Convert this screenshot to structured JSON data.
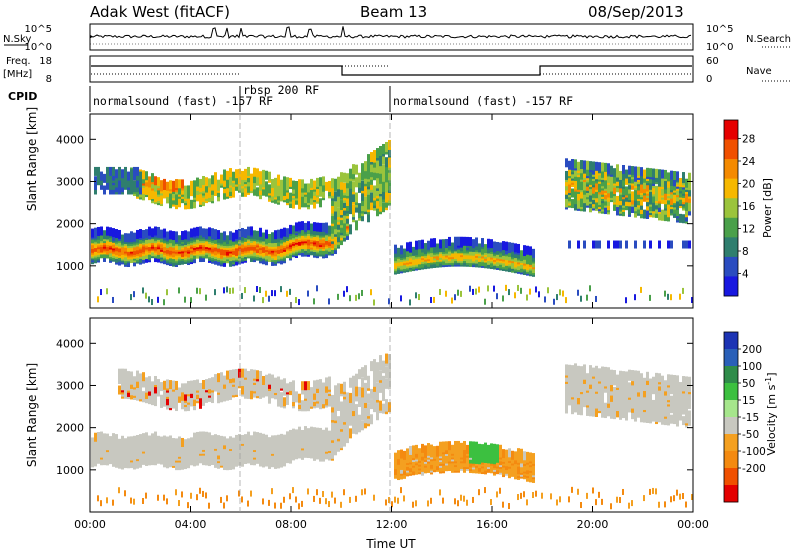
{
  "header": {
    "station": "Adak West (fitACF)",
    "beam": "Beam 13",
    "date": "08/Sep/2013"
  },
  "nsky_panel": {
    "left_label": "N.Sky",
    "right_label": "N.Search",
    "ticks_left": [
      "10^5",
      "10^0"
    ],
    "ticks_right": [
      "10^5",
      "10^0"
    ]
  },
  "freq_panel": {
    "left_label_1": "Freq.",
    "left_label_2": "[MHz]",
    "right_label": "Nave",
    "ticks_left": [
      "18",
      "8"
    ],
    "ticks_right": [
      "60",
      "0"
    ]
  },
  "cpid": {
    "label": "CPID",
    "segments": [
      {
        "text": "normalsound (fast) -157 RF"
      },
      {
        "text": "rbsp 200 RF"
      },
      {
        "text": "normalsound (fast) -157 RF"
      }
    ]
  },
  "chart_data": [
    {
      "type": "heatmap",
      "xlabel": "Time UT",
      "ylabel": "Slant Range [km]",
      "x_ticks": [
        "00:00",
        "04:00",
        "08:00",
        "12:00",
        "16:00",
        "20:00",
        "00:00"
      ],
      "y_ticks": [
        1000,
        2000,
        3000,
        4000
      ],
      "colorbar": {
        "label": "Power [dB]",
        "ticks": [
          4,
          8,
          12,
          16,
          20,
          24,
          28
        ],
        "colors": [
          "#1818e0",
          "#2a4cc0",
          "#2f7e6e",
          "#4aa04a",
          "#9bc43c",
          "#f6b800",
          "#f48a00",
          "#f05000",
          "#e60000"
        ]
      }
    },
    {
      "type": "heatmap",
      "xlabel": "Time UT",
      "ylabel": "Slant Range [km]",
      "x_ticks": [
        "00:00",
        "04:00",
        "08:00",
        "12:00",
        "16:00",
        "20:00",
        "00:00"
      ],
      "y_ticks": [
        1000,
        2000,
        3000,
        4000
      ],
      "colorbar": {
        "label": "Velocity [m s^-1]",
        "ticks": [
          "200",
          "100",
          "50",
          "15",
          "-15",
          "-50",
          "-100",
          "-200"
        ],
        "colors": [
          "#1d34b4",
          "#2a60b8",
          "#2f8c4a",
          "#3cc040",
          "#a6e68c",
          "#c8c8c0",
          "#f4a020",
          "#f48a10",
          "#f05000",
          "#e40000"
        ]
      }
    }
  ],
  "colors": {
    "grey": "#c8c8c0",
    "red": "#e60000",
    "orange": "#f48a00",
    "yellow": "#f6b800",
    "green": "#4aa04a",
    "blue": "#1818e0"
  }
}
